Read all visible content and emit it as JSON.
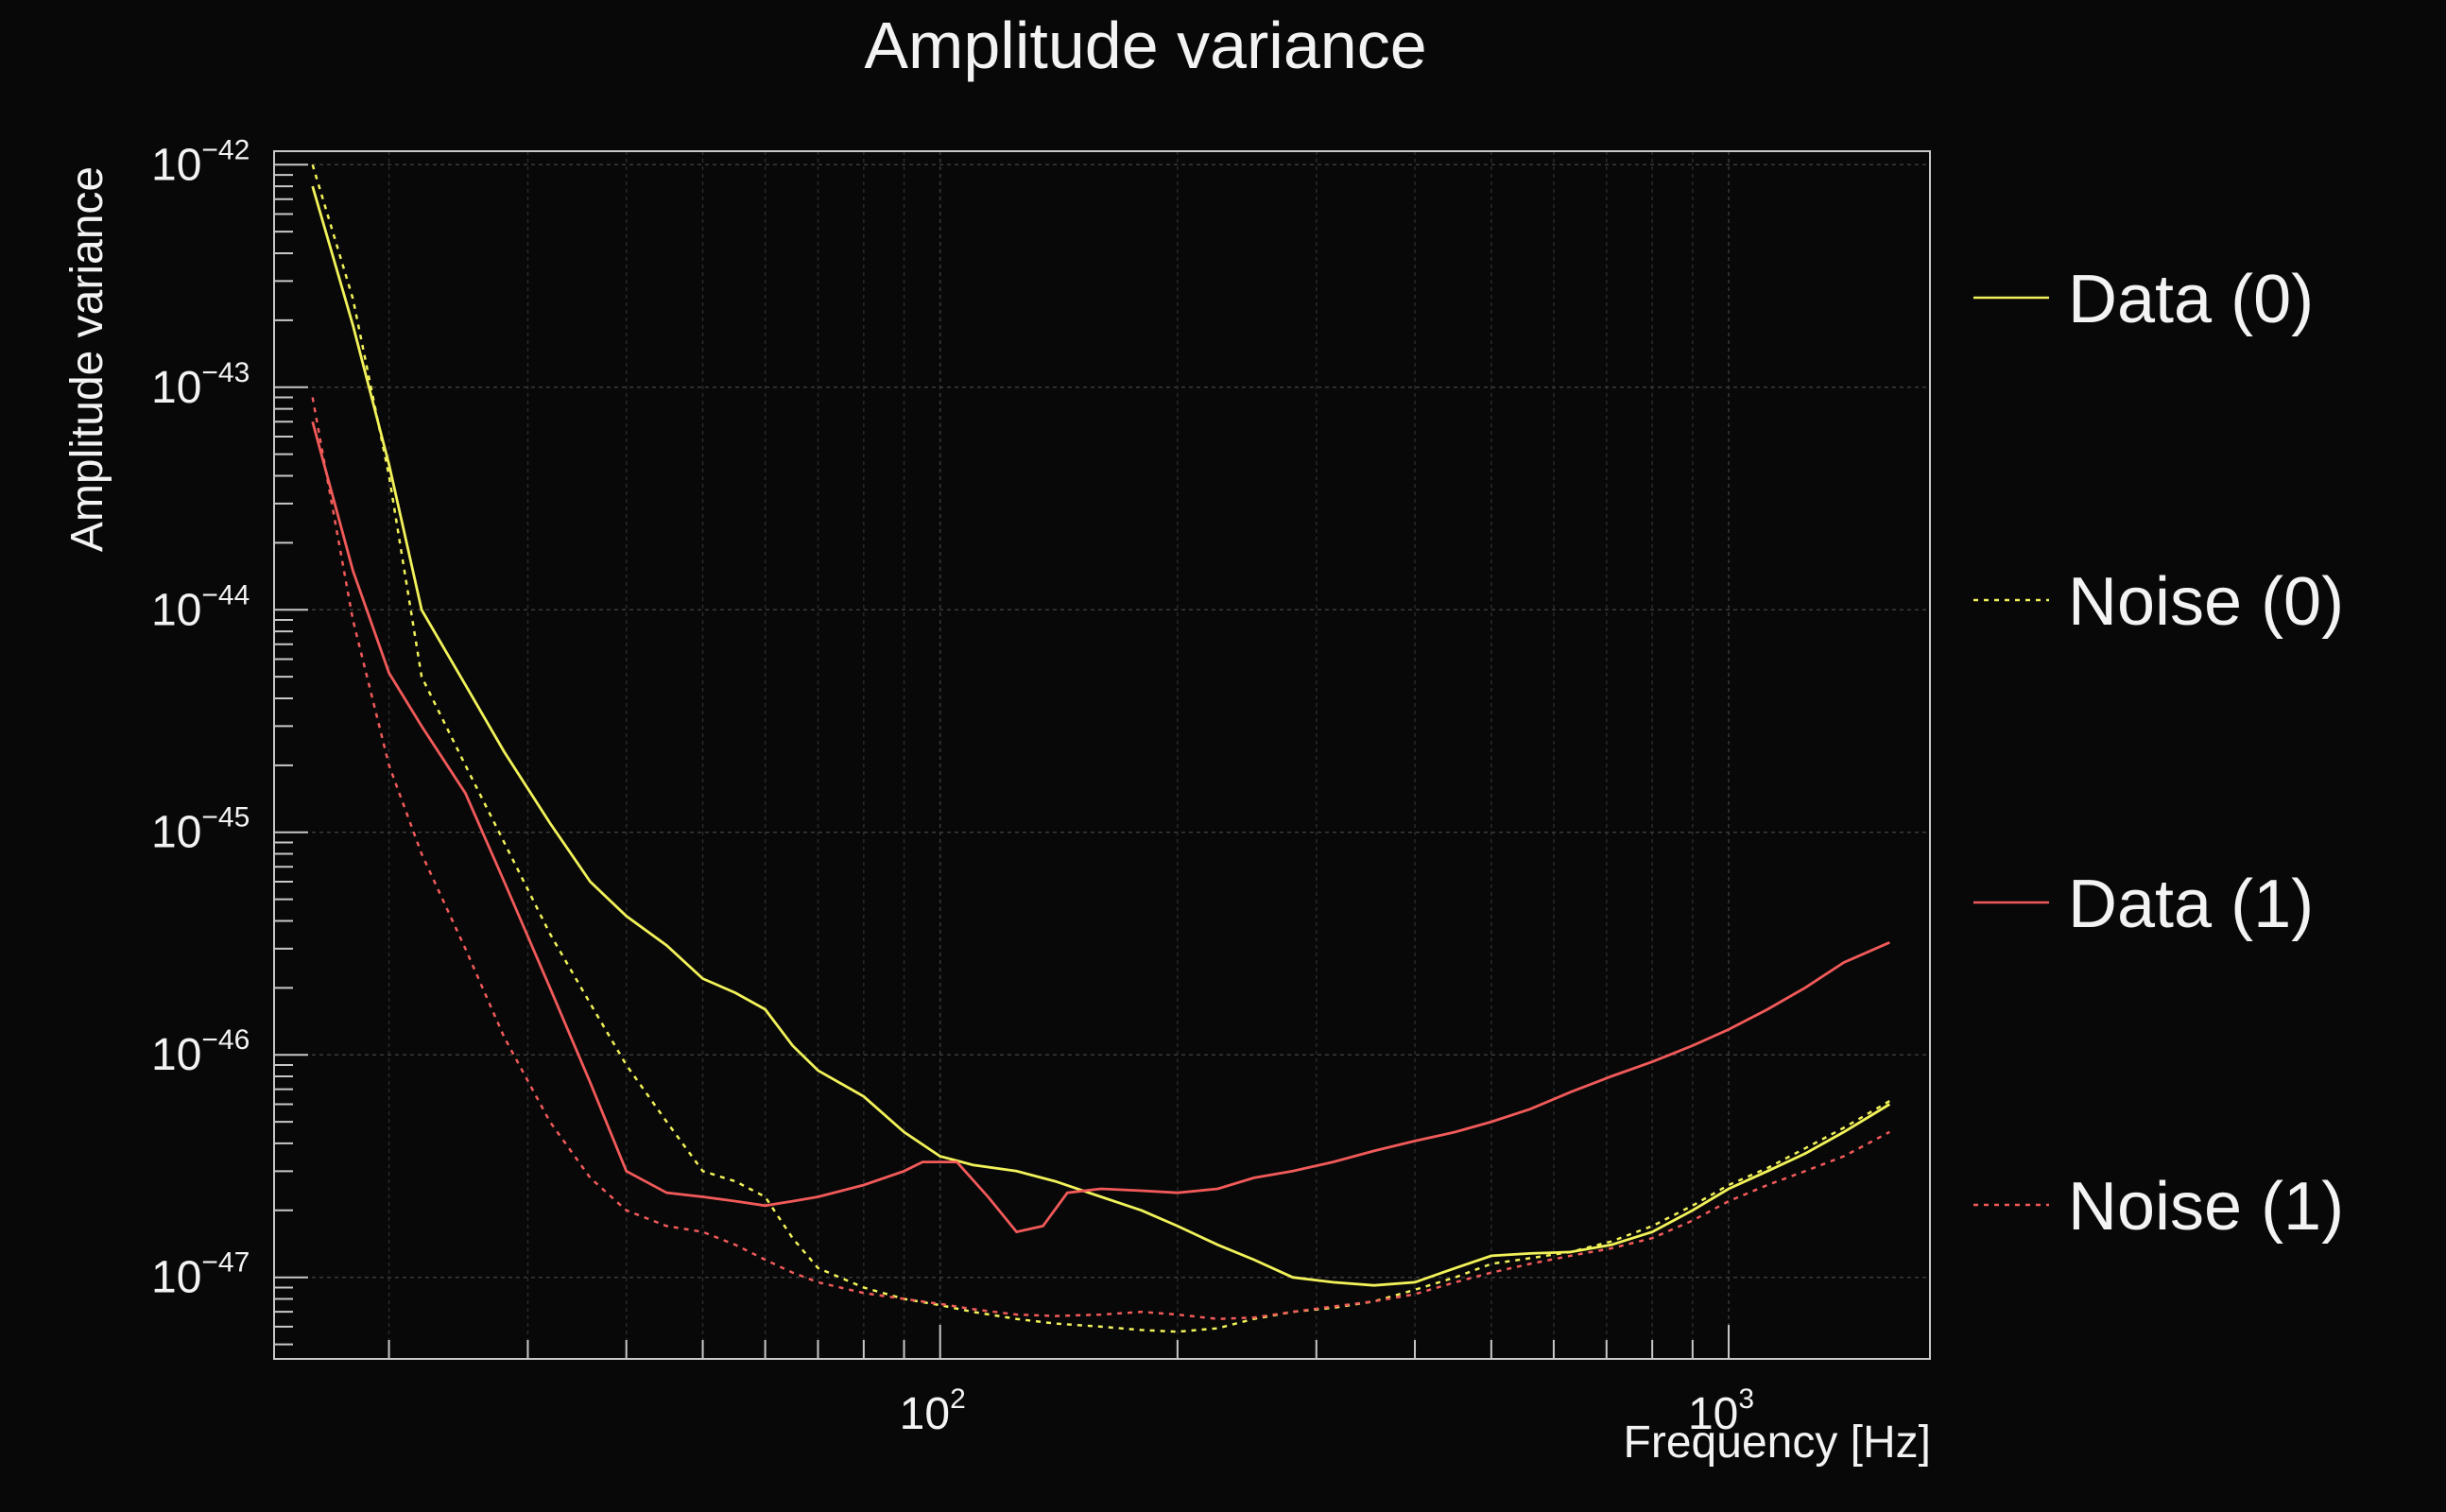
{
  "chart_data": {
    "type": "line",
    "title": "Amplitude variance",
    "xlabel": "Frequency [Hz]",
    "ylabel": "Amplitude variance",
    "xscale": "log",
    "yscale": "log",
    "xlim": [
      14.3,
      1800
    ],
    "ylim": [
      4.3e-48,
      1.15e-42
    ],
    "grid": true,
    "legend_position": "right",
    "x_ticks": [
      {
        "value": 100,
        "base": "10",
        "exp": "2"
      },
      {
        "value": 1000,
        "base": "10",
        "exp": "3"
      }
    ],
    "y_ticks": [
      {
        "value": 1e-42,
        "base": "10",
        "exp": "−42"
      },
      {
        "value": 1e-43,
        "base": "10",
        "exp": "−43"
      },
      {
        "value": 1e-44,
        "base": "10",
        "exp": "−44"
      },
      {
        "value": 1e-45,
        "base": "10",
        "exp": "−45"
      },
      {
        "value": 1e-46,
        "base": "10",
        "exp": "−46"
      },
      {
        "value": 1e-47,
        "base": "10",
        "exp": "−47"
      }
    ],
    "series": [
      {
        "name": "Data (0)",
        "color": "#f2f25a",
        "dash": "solid",
        "x": [
          16,
          18,
          20,
          22,
          25,
          28,
          32,
          36,
          40,
          45,
          50,
          55,
          60,
          65,
          70,
          80,
          90,
          100,
          110,
          125,
          140,
          160,
          180,
          200,
          225,
          250,
          280,
          315,
          355,
          400,
          450,
          500,
          560,
          630,
          710,
          800,
          900,
          1000,
          1120,
          1250,
          1400,
          1600
        ],
        "y": [
          8e-43,
          1.9e-43,
          4.5e-44,
          1e-44,
          4.6e-45,
          2.3e-45,
          1.1e-45,
          6e-46,
          4.2e-46,
          3.1e-46,
          2.2e-46,
          1.9e-46,
          1.6e-46,
          1.1e-46,
          8.5e-47,
          6.5e-47,
          4.5e-47,
          3.5e-47,
          3.2e-47,
          3e-47,
          2.7e-47,
          2.3e-47,
          2e-47,
          1.7e-47,
          1.4e-47,
          1.2e-47,
          1e-47,
          9.5e-48,
          9.2e-48,
          9.5e-48,
          1.1e-47,
          1.25e-47,
          1.28e-47,
          1.3e-47,
          1.4e-47,
          1.6e-47,
          2e-47,
          2.5e-47,
          3e-47,
          3.6e-47,
          4.5e-47,
          6e-47
        ]
      },
      {
        "name": "Noise (0)",
        "color": "#f2f25a",
        "dash": "dotted",
        "x": [
          16,
          18,
          20,
          22,
          25,
          28,
          32,
          36,
          40,
          45,
          50,
          55,
          60,
          65,
          70,
          80,
          90,
          100,
          110,
          125,
          140,
          160,
          180,
          200,
          225,
          250,
          280,
          315,
          355,
          400,
          450,
          500,
          560,
          630,
          710,
          800,
          900,
          1000,
          1120,
          1250,
          1400,
          1600
        ],
        "y": [
          1e-42,
          2.5e-43,
          4e-44,
          5e-45,
          2e-45,
          9e-46,
          3.5e-46,
          1.7e-46,
          9e-47,
          5e-47,
          3e-47,
          2.7e-47,
          2.3e-47,
          1.5e-47,
          1.1e-47,
          9e-48,
          8e-48,
          7.5e-48,
          7e-48,
          6.5e-48,
          6.2e-48,
          6e-48,
          5.8e-48,
          5.7e-48,
          5.9e-48,
          6.5e-48,
          7e-48,
          7.3e-48,
          7.8e-48,
          8.8e-48,
          1e-47,
          1.15e-47,
          1.22e-47,
          1.3e-47,
          1.45e-47,
          1.7e-47,
          2.1e-47,
          2.6e-47,
          3.1e-47,
          3.8e-47,
          4.7e-47,
          6.2e-47
        ]
      },
      {
        "name": "Data (1)",
        "color": "#f25a5a",
        "dash": "solid",
        "x": [
          16,
          18,
          20,
          22,
          25,
          28,
          32,
          36,
          40,
          45,
          50,
          55,
          60,
          65,
          70,
          80,
          90,
          95,
          105,
          115,
          125,
          135,
          145,
          160,
          180,
          200,
          225,
          250,
          280,
          315,
          355,
          400,
          450,
          500,
          560,
          630,
          710,
          800,
          900,
          1000,
          1120,
          1250,
          1400,
          1600
        ],
        "y": [
          7e-44,
          1.5e-44,
          5.2e-45,
          3e-45,
          1.5e-45,
          6e-46,
          2e-46,
          7.5e-47,
          3e-47,
          2.4e-47,
          2.3e-47,
          2.2e-47,
          2.1e-47,
          2.2e-47,
          2.3e-47,
          2.6e-47,
          3e-47,
          3.3e-47,
          3.3e-47,
          2.3e-47,
          1.6e-47,
          1.7e-47,
          2.4e-47,
          2.5e-47,
          2.45e-47,
          2.4e-47,
          2.5e-47,
          2.8e-47,
          3e-47,
          3.3e-47,
          3.7e-47,
          4.1e-47,
          4.5e-47,
          5e-47,
          5.7e-47,
          6.8e-47,
          8e-47,
          9.3e-47,
          1.1e-46,
          1.3e-46,
          1.6e-46,
          2e-46,
          2.6e-46,
          3.2e-46
        ]
      },
      {
        "name": "Noise (1)",
        "color": "#f25a5a",
        "dash": "dotted",
        "x": [
          16,
          18,
          20,
          22,
          25,
          28,
          32,
          36,
          40,
          45,
          50,
          55,
          60,
          65,
          70,
          80,
          90,
          100,
          110,
          125,
          140,
          160,
          180,
          200,
          225,
          250,
          280,
          315,
          355,
          400,
          450,
          500,
          560,
          630,
          710,
          800,
          900,
          1000,
          1120,
          1250,
          1400,
          1600
        ],
        "y": [
          9e-44,
          9e-45,
          2e-45,
          8e-46,
          3e-46,
          1.2e-46,
          5e-47,
          2.8e-47,
          2e-47,
          1.7e-47,
          1.6e-47,
          1.4e-47,
          1.2e-47,
          1.05e-47,
          9.5e-48,
          8.5e-48,
          8e-48,
          7.6e-48,
          7.2e-48,
          6.8e-48,
          6.7e-48,
          6.8e-48,
          7e-48,
          6.8e-48,
          6.5e-48,
          6.6e-48,
          7e-48,
          7.4e-48,
          7.8e-48,
          8.4e-48,
          9.5e-48,
          1.05e-47,
          1.15e-47,
          1.25e-47,
          1.35e-47,
          1.5e-47,
          1.8e-47,
          2.2e-47,
          2.6e-47,
          3e-47,
          3.5e-47,
          4.5e-47
        ]
      }
    ]
  }
}
